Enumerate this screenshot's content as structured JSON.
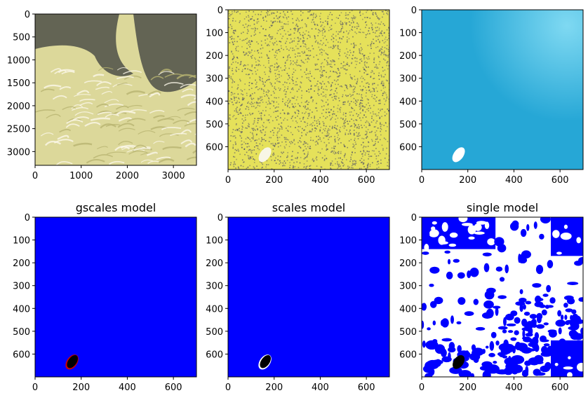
{
  "chart_data": [
    {
      "type": "image",
      "title": "",
      "colors": {
        "light": "#dcd89a",
        "dark": "#4d5048",
        "accent": "#b8b470"
      },
      "xlim": [
        0,
        3500
      ],
      "ylim": [
        0,
        3300
      ],
      "xticks": [
        0,
        1000,
        2000,
        3000
      ],
      "yticks": [
        0,
        500,
        1000,
        1500,
        2000,
        2500,
        3000
      ],
      "content": "satellite"
    },
    {
      "type": "image",
      "title": "",
      "colors": {
        "light": "#e5e15a",
        "dark": "#5a5a66"
      },
      "xlim": [
        0,
        700
      ],
      "ylim": [
        0,
        700
      ],
      "xticks": [
        0,
        200,
        400,
        600
      ],
      "yticks": [
        0,
        100,
        200,
        300,
        400,
        500,
        600
      ],
      "content": "noise"
    },
    {
      "type": "image",
      "title": "",
      "colors": {
        "base": "#26a7d6",
        "light": "#7fd9f2"
      },
      "xlim": [
        0,
        700
      ],
      "ylim": [
        0,
        700
      ],
      "xticks": [
        0,
        200,
        400,
        600
      ],
      "yticks": [
        0,
        100,
        200,
        300,
        400,
        500,
        600
      ],
      "content": "water"
    },
    {
      "type": "image",
      "title": "gscales model",
      "colors": {
        "base": "#0000ff",
        "blob": "#000000",
        "edge": "#cc0000"
      },
      "xlim": [
        0,
        700
      ],
      "ylim": [
        0,
        700
      ],
      "xticks": [
        0,
        200,
        400,
        600
      ],
      "yticks": [
        0,
        100,
        200,
        300,
        400,
        500,
        600
      ],
      "content": "mask_blob"
    },
    {
      "type": "image",
      "title": "scales model",
      "colors": {
        "base": "#0000ff",
        "blob": "#000000",
        "edge": "#ffffff"
      },
      "xlim": [
        0,
        700
      ],
      "ylim": [
        0,
        700
      ],
      "xticks": [
        0,
        200,
        400,
        600
      ],
      "yticks": [
        0,
        100,
        200,
        300,
        400,
        500,
        600
      ],
      "content": "mask_blob"
    },
    {
      "type": "image",
      "title": "single model",
      "colors": {
        "base": "#0000ff",
        "white": "#ffffff",
        "blob": "#000000"
      },
      "xlim": [
        0,
        700
      ],
      "ylim": [
        0,
        700
      ],
      "xticks": [
        0,
        200,
        400,
        600
      ],
      "yticks": [
        0,
        100,
        200,
        300,
        400,
        500,
        600
      ],
      "content": "mask_patchy"
    }
  ]
}
